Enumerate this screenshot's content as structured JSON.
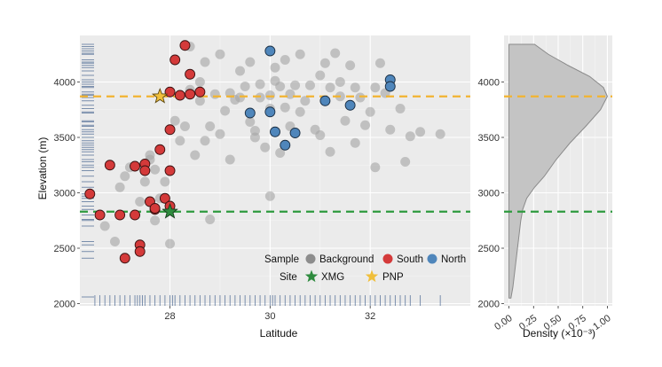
{
  "chart_data": [
    {
      "type": "scatter",
      "xlabel": "Latitude",
      "ylabel": "Elevation (m)",
      "xlim": [
        26.2,
        34.0
      ],
      "ylim": [
        1980,
        4420
      ],
      "x_ticks": [
        28,
        30,
        32
      ],
      "y_ticks": [
        2000,
        2500,
        3000,
        3500,
        4000
      ],
      "x_tick_labels": [
        "28",
        "30",
        "32"
      ],
      "y_tick_labels": [
        "2000",
        "2500",
        "3000",
        "3500",
        "4000"
      ],
      "grid": true,
      "legend_position": "bottom-right",
      "colors": {
        "background": "#a6a6a6",
        "south": "#d43a3a",
        "north": "#4f86bb",
        "xmg": "#2e8b3e",
        "pnp": "#f0bf3b",
        "xmg_line": "#2e9a3e",
        "pnp_line": "#f2b431"
      },
      "hlines": [
        {
          "name": "XMG",
          "y": 2830
        },
        {
          "name": "PNP",
          "y": 3870
        }
      ],
      "series": [
        {
          "name": "Background",
          "points": [
            [
              26.7,
              2700
            ],
            [
              26.9,
              2560
            ],
            [
              27.0,
              3050
            ],
            [
              27.1,
              3150
            ],
            [
              27.2,
              3230
            ],
            [
              27.4,
              2920
            ],
            [
              27.5,
              3100
            ],
            [
              27.6,
              3300
            ],
            [
              27.6,
              3340
            ],
            [
              27.7,
              2750
            ],
            [
              27.7,
              3210
            ],
            [
              27.8,
              2950
            ],
            [
              27.9,
              3100
            ],
            [
              28.0,
              2540
            ],
            [
              28.1,
              3650
            ],
            [
              28.2,
              3470
            ],
            [
              28.3,
              3600
            ],
            [
              28.4,
              3930
            ],
            [
              28.4,
              4320
            ],
            [
              28.5,
              3340
            ],
            [
              28.6,
              3830
            ],
            [
              28.6,
              4000
            ],
            [
              28.7,
              4180
            ],
            [
              28.7,
              3470
            ],
            [
              28.8,
              2760
            ],
            [
              28.8,
              3600
            ],
            [
              28.9,
              3890
            ],
            [
              29.0,
              3530
            ],
            [
              29.0,
              4250
            ],
            [
              29.1,
              3740
            ],
            [
              29.2,
              3300
            ],
            [
              29.2,
              3900
            ],
            [
              29.3,
              3840
            ],
            [
              29.4,
              4100
            ],
            [
              29.4,
              3860
            ],
            [
              29.5,
              3960
            ],
            [
              29.6,
              3640
            ],
            [
              29.6,
              4180
            ],
            [
              29.7,
              3500
            ],
            [
              29.7,
              3560
            ],
            [
              29.8,
              3980
            ],
            [
              29.8,
              3860
            ],
            [
              29.9,
              3410
            ],
            [
              30.0,
              2970
            ],
            [
              30.0,
              3760
            ],
            [
              30.0,
              3880
            ],
            [
              30.1,
              4130
            ],
            [
              30.1,
              4010
            ],
            [
              30.2,
              3960
            ],
            [
              30.2,
              3360
            ],
            [
              30.3,
              3770
            ],
            [
              30.3,
              4200
            ],
            [
              30.4,
              3600
            ],
            [
              30.4,
              3890
            ],
            [
              30.5,
              3970
            ],
            [
              30.6,
              4250
            ],
            [
              30.6,
              3730
            ],
            [
              30.7,
              3830
            ],
            [
              30.8,
              3970
            ],
            [
              30.9,
              3570
            ],
            [
              31.0,
              4060
            ],
            [
              31.0,
              3520
            ],
            [
              31.1,
              4170
            ],
            [
              31.2,
              3950
            ],
            [
              31.2,
              3370
            ],
            [
              31.3,
              4260
            ],
            [
              31.4,
              3870
            ],
            [
              31.4,
              4000
            ],
            [
              31.5,
              3650
            ],
            [
              31.6,
              4150
            ],
            [
              31.7,
              3950
            ],
            [
              31.7,
              3450
            ],
            [
              31.8,
              3860
            ],
            [
              31.9,
              3610
            ],
            [
              32.0,
              3730
            ],
            [
              32.1,
              3230
            ],
            [
              32.1,
              3950
            ],
            [
              32.2,
              4170
            ],
            [
              32.3,
              3900
            ],
            [
              32.4,
              3570
            ],
            [
              32.6,
              3760
            ],
            [
              32.7,
              3280
            ],
            [
              32.8,
              3510
            ],
            [
              33.0,
              3550
            ],
            [
              33.4,
              3530
            ]
          ]
        },
        {
          "name": "South",
          "points": [
            [
              26.4,
              2990
            ],
            [
              26.6,
              2800
            ],
            [
              26.8,
              3250
            ],
            [
              27.0,
              2800
            ],
            [
              27.1,
              2410
            ],
            [
              27.3,
              2800
            ],
            [
              27.3,
              3240
            ],
            [
              27.4,
              2530
            ],
            [
              27.4,
              2470
            ],
            [
              27.5,
              3260
            ],
            [
              27.5,
              3200
            ],
            [
              27.6,
              2920
            ],
            [
              27.7,
              2850
            ],
            [
              27.7,
              2860
            ],
            [
              27.8,
              3390
            ],
            [
              27.9,
              2950
            ],
            [
              28.0,
              2880
            ],
            [
              28.0,
              3200
            ],
            [
              28.0,
              3570
            ],
            [
              28.0,
              3910
            ],
            [
              28.1,
              4200
            ],
            [
              28.2,
              3880
            ],
            [
              28.3,
              4330
            ],
            [
              28.4,
              3890
            ],
            [
              28.4,
              4070
            ],
            [
              28.6,
              3910
            ]
          ]
        },
        {
          "name": "North",
          "points": [
            [
              29.6,
              3720
            ],
            [
              30.0,
              4280
            ],
            [
              30.0,
              3730
            ],
            [
              30.1,
              3550
            ],
            [
              30.3,
              3430
            ],
            [
              30.5,
              3540
            ],
            [
              31.1,
              3830
            ],
            [
              31.6,
              3790
            ],
            [
              32.4,
              4020
            ],
            [
              32.4,
              3960
            ]
          ]
        },
        {
          "name": "XMG",
          "points": [
            [
              28.0,
              2830
            ]
          ]
        },
        {
          "name": "PNP",
          "points": [
            [
              27.8,
              3870
            ]
          ]
        }
      ],
      "rug_x": [
        26.5,
        26.6,
        26.7,
        26.8,
        26.9,
        27.0,
        27.1,
        27.2,
        27.3,
        27.35,
        27.4,
        27.45,
        27.5,
        27.6,
        27.7,
        27.8,
        27.9,
        28.0,
        28.05,
        28.1,
        28.2,
        28.3,
        28.4,
        28.5,
        28.6,
        28.7,
        28.8,
        28.9,
        29.0,
        29.1,
        29.2,
        29.3,
        29.4,
        29.5,
        29.6,
        29.7,
        29.8,
        29.9,
        30.0,
        30.05,
        30.1,
        30.2,
        30.3,
        30.4,
        30.5,
        30.6,
        30.7,
        30.8,
        30.9,
        31.0,
        31.1,
        31.2,
        31.3,
        31.4,
        31.5,
        31.6,
        31.7,
        31.8,
        31.9,
        32.0,
        32.1,
        32.2,
        32.3,
        32.4,
        32.5,
        32.6,
        32.7,
        32.8,
        33.0,
        33.4
      ],
      "rug_y": [
        2060,
        2410,
        2470,
        2530,
        2560,
        2700,
        2750,
        2760,
        2800,
        2850,
        2880,
        2920,
        2950,
        2970,
        2990,
        3050,
        3100,
        3150,
        3200,
        3230,
        3250,
        3280,
        3300,
        3340,
        3370,
        3390,
        3410,
        3430,
        3450,
        3470,
        3500,
        3530,
        3550,
        3570,
        3600,
        3610,
        3640,
        3650,
        3720,
        3730,
        3760,
        3790,
        3830,
        3860,
        3880,
        3890,
        3910,
        3950,
        3960,
        3980,
        4000,
        4020,
        4060,
        4100,
        4130,
        4150,
        4170,
        4180,
        4200,
        4250,
        4260,
        4280,
        4300,
        4320,
        4340
      ]
    },
    {
      "type": "area",
      "xlabel": "Density (×10⁻³)",
      "ylabel": "",
      "xlim": [
        -0.05,
        1.05
      ],
      "ylim": [
        1980,
        4420
      ],
      "x_ticks": [
        0.0,
        0.25,
        0.5,
        0.75,
        1.0
      ],
      "x_tick_labels": [
        "0.00",
        "0.25",
        "0.50",
        "0.75",
        "1.00"
      ],
      "y_ticks": [
        2000,
        2500,
        3000,
        3500,
        4000
      ],
      "y_tick_labels": [
        "2000",
        "2500",
        "3000",
        "3500",
        "4000"
      ],
      "grid": true,
      "density_curve": [
        [
          2050,
          0.02
        ],
        [
          2150,
          0.04
        ],
        [
          2300,
          0.06
        ],
        [
          2450,
          0.08
        ],
        [
          2600,
          0.1
        ],
        [
          2750,
          0.12
        ],
        [
          2850,
          0.14
        ],
        [
          2950,
          0.18
        ],
        [
          3050,
          0.26
        ],
        [
          3150,
          0.36
        ],
        [
          3300,
          0.48
        ],
        [
          3450,
          0.62
        ],
        [
          3600,
          0.78
        ],
        [
          3750,
          0.93
        ],
        [
          3870,
          1.0
        ],
        [
          3950,
          0.96
        ],
        [
          4050,
          0.82
        ],
        [
          4150,
          0.6
        ],
        [
          4250,
          0.4
        ],
        [
          4340,
          0.26
        ]
      ],
      "density_top": 4340
    }
  ],
  "legend": {
    "sample_title": "Sample",
    "site_title": "Site",
    "items": [
      {
        "label": "Background",
        "kind": "dot",
        "color": "#8d8d8d"
      },
      {
        "label": "South",
        "kind": "dot",
        "color": "#d43a3a"
      },
      {
        "label": "North",
        "kind": "dot",
        "color": "#4f86bb"
      },
      {
        "label": "XMG",
        "kind": "star",
        "color": "#2e8b3e"
      },
      {
        "label": "PNP",
        "kind": "star",
        "color": "#f0bf3b"
      }
    ]
  }
}
